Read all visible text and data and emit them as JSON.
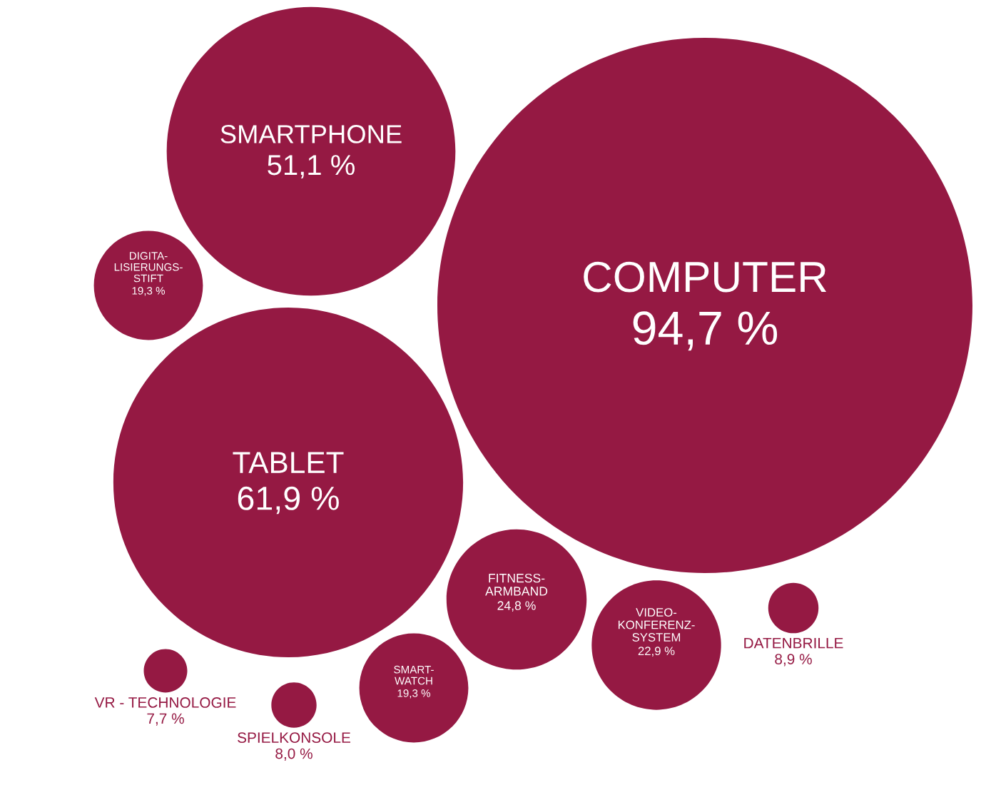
{
  "chart_data": {
    "type": "other",
    "categories": [
      "COMPUTER",
      "TABLET",
      "SMARTPHONE",
      "FITNESS-\nARMBAND",
      "VIDEO-\nKONFERENZ-\nSYSTEM",
      "SMART-\nWATCH",
      "DIGITA-\nLISIERUNGS-\nSTIFT",
      "DATENBRILLE",
      "SPIELKONSOLE",
      "VR - TECHNOLOGIE"
    ],
    "values": [
      94.7,
      61.9,
      51.1,
      24.8,
      22.9,
      19.3,
      19.3,
      8.9,
      8.0,
      7.7
    ],
    "value_labels": [
      "94,7 %",
      "61,9 %",
      "51,1 %",
      "24,8 %",
      "22,9 %",
      "19,3 %",
      "19,3 %",
      "8,9 %",
      "8,0 %",
      "7,7 %"
    ],
    "color": "#951943"
  }
}
